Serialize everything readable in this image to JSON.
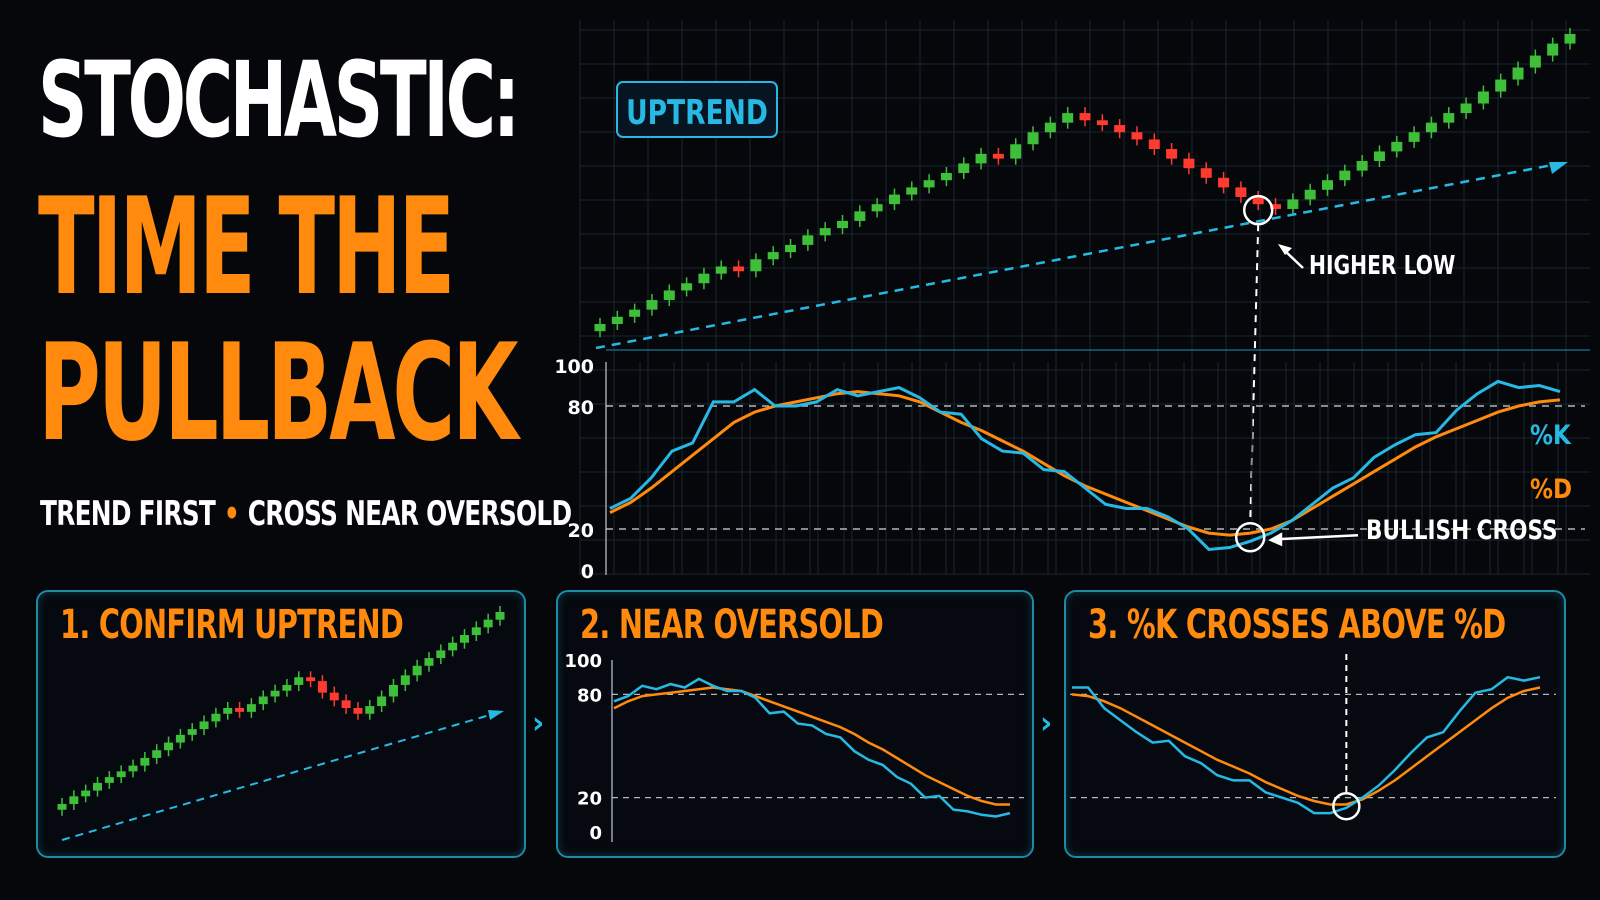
{
  "headline": {
    "line1": "STOCHASTIC:",
    "line2": "TIME THE",
    "line3": "PULLBACK",
    "subtitle_left": "TREND FIRST",
    "subtitle_sep": "•",
    "subtitle_right": "CROSS NEAR OVERSOLD"
  },
  "colors": {
    "orange": "#ff8a0d",
    "cyan": "#27b9e4",
    "bull": "#3fbe3a",
    "bear": "#ff3a2e",
    "panel_border": "#1d8aa6",
    "grid": "#1a2430"
  },
  "chart_data": [
    {
      "type": "candlestick",
      "title": "",
      "badge": "UPTREND",
      "annotation": "HIGHER LOW",
      "trendline": "dashed",
      "grid": true,
      "closes": [
        10,
        13,
        16,
        20,
        24,
        27,
        31,
        34,
        32,
        37,
        40,
        43,
        47,
        50,
        53,
        57,
        60,
        64,
        67,
        70,
        73,
        77,
        81,
        79,
        85,
        90,
        94,
        98,
        95,
        93,
        90,
        87,
        83,
        79,
        75,
        71,
        67,
        63,
        60,
        58,
        62,
        66,
        70,
        74,
        78,
        82,
        86,
        90,
        94,
        98,
        102,
        107,
        112,
        117,
        122,
        127,
        131
      ],
      "higher_low_index": 38
    },
    {
      "type": "line",
      "title": "",
      "y_ticks": [
        "100",
        "80",
        "20",
        "0"
      ],
      "ylim": [
        0,
        100
      ],
      "reference_lines": [
        80,
        20
      ],
      "annotation": "BULLISH CROSS",
      "grid": true,
      "legend_position": "right",
      "series": [
        {
          "name": "%K",
          "color": "#27b9e4",
          "values": [
            30,
            35,
            45,
            58,
            62,
            82,
            82,
            88,
            80,
            80,
            82,
            88,
            85,
            87,
            89,
            84,
            77,
            76,
            64,
            58,
            57,
            49,
            48,
            40,
            32,
            30,
            30,
            26,
            20,
            10,
            11,
            14,
            18,
            24,
            32,
            40,
            45,
            55,
            61,
            66,
            67,
            78,
            86,
            92,
            89,
            90,
            87
          ]
        },
        {
          "name": "%D",
          "color": "#ff8a0d",
          "values": [
            28,
            33,
            40,
            48,
            56,
            64,
            72,
            77,
            80,
            82,
            84,
            86,
            87,
            86,
            85,
            82,
            77,
            72,
            68,
            63,
            58,
            52,
            46,
            41,
            37,
            33,
            29,
            25,
            21,
            18,
            17,
            18,
            20,
            24,
            30,
            36,
            42,
            48,
            54,
            60,
            65,
            69,
            73,
            77,
            80,
            82,
            83
          ]
        }
      ],
      "cross_index": 31
    },
    {
      "type": "candlestick",
      "title": "1. CONFIRM UPTREND",
      "trendline": "dashed",
      "closes": [
        8,
        12,
        15,
        19,
        22,
        25,
        28,
        32,
        36,
        40,
        44,
        47,
        51,
        55,
        58,
        56,
        60,
        64,
        67,
        70,
        74,
        72,
        66,
        62,
        58,
        55,
        59,
        64,
        70,
        75,
        80,
        84,
        88,
        92,
        96,
        100,
        104,
        108
      ]
    },
    {
      "type": "line",
      "title": "2. NEAR OVERSOLD",
      "y_ticks": [
        "100",
        "80",
        "20",
        "0"
      ],
      "ylim": [
        0,
        100
      ],
      "reference_lines": [
        80,
        20
      ],
      "series": [
        {
          "name": "%K",
          "color": "#27b9e4",
          "values": [
            76,
            79,
            85,
            83,
            86,
            84,
            89,
            85,
            82,
            82,
            78,
            69,
            70,
            63,
            62,
            57,
            55,
            47,
            42,
            39,
            32,
            28,
            20,
            21,
            13,
            12,
            10,
            9,
            11
          ]
        },
        {
          "name": "%D",
          "color": "#ff8a0d",
          "values": [
            72,
            76,
            79,
            80,
            81,
            82,
            83,
            84,
            83,
            82,
            79,
            76,
            73,
            70,
            67,
            64,
            61,
            57,
            52,
            48,
            43,
            38,
            33,
            29,
            25,
            21,
            18,
            16,
            16
          ]
        }
      ]
    },
    {
      "type": "line",
      "title": "3. %K CROSSES ABOVE %D",
      "ylim": [
        0,
        100
      ],
      "reference_lines": [
        80,
        20
      ],
      "series": [
        {
          "name": "%K",
          "color": "#27b9e4",
          "values": [
            84,
            84,
            72,
            65,
            58,
            52,
            53,
            44,
            40,
            33,
            30,
            30,
            23,
            20,
            17,
            11,
            11,
            14,
            20,
            27,
            36,
            46,
            55,
            58,
            70,
            81,
            83,
            90,
            88,
            90
          ]
        },
        {
          "name": "%D",
          "color": "#ff8a0d",
          "values": [
            80,
            79,
            76,
            72,
            67,
            62,
            57,
            52,
            47,
            42,
            38,
            34,
            29,
            25,
            21,
            18,
            16,
            16,
            19,
            24,
            30,
            37,
            44,
            51,
            58,
            65,
            72,
            78,
            82,
            84
          ]
        }
      ],
      "cross_index": 17
    }
  ]
}
